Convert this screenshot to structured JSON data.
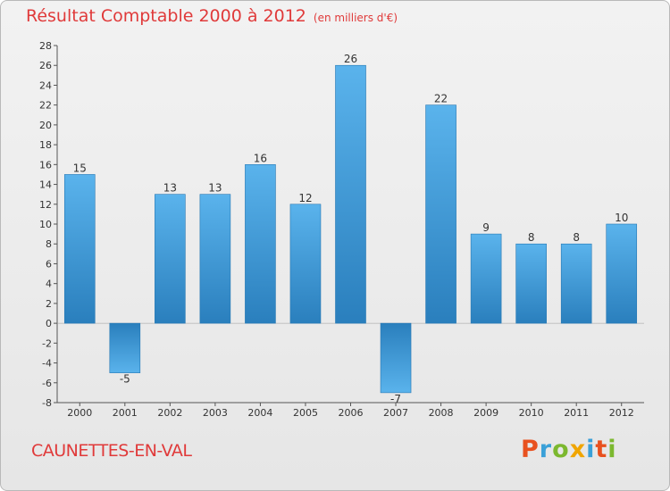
{
  "header": {
    "title": "Résultat Comptable 2000 à 2012",
    "subtitle": "(en milliers d'€)"
  },
  "footer": {
    "commune": "CAUNETTES-EN-VAL",
    "logo_letters": [
      "P",
      "r",
      "o",
      "x",
      "i",
      "t",
      "i"
    ]
  },
  "chart_data": {
    "type": "bar",
    "title": "Résultat Comptable 2000 à 2012",
    "unit": "(en milliers d'€)",
    "categories": [
      "2000",
      "2001",
      "2002",
      "2003",
      "2004",
      "2005",
      "2006",
      "2007",
      "2008",
      "2009",
      "2010",
      "2011",
      "2012"
    ],
    "values": [
      15,
      -5,
      13,
      13,
      16,
      12,
      26,
      -7,
      22,
      9,
      8,
      8,
      10
    ],
    "yticks": [
      -8,
      -6,
      -4,
      -2,
      0,
      2,
      4,
      6,
      8,
      10,
      12,
      14,
      16,
      18,
      20,
      22,
      24,
      26,
      28
    ],
    "ylim": [
      -8,
      28
    ],
    "grid": false,
    "bar_color": "#3b95d6"
  }
}
